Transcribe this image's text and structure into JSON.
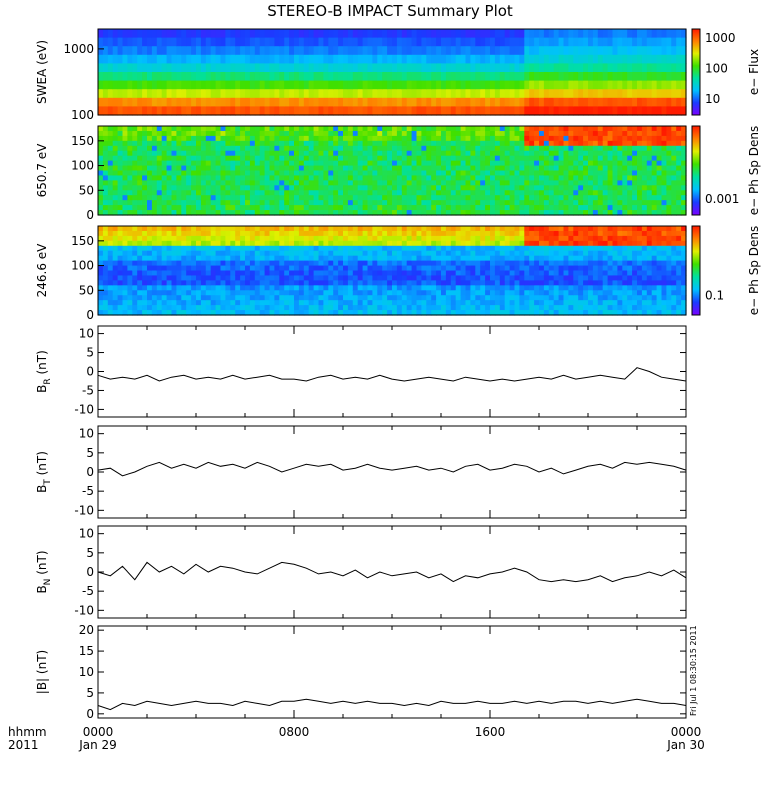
{
  "title": "STEREO-B IMPACT Summary Plot",
  "stamp": "Fri Jul 1 08:30:15 2011",
  "time_axis": {
    "corner_top": "hhmm",
    "corner_bottom": "2011",
    "ticks": [
      {
        "top": "0000",
        "bottom": "Jan 29",
        "hour": 0
      },
      {
        "top": "0800",
        "bottom": "",
        "hour": 8
      },
      {
        "top": "1600",
        "bottom": "",
        "hour": 16
      },
      {
        "top": "0000",
        "bottom": "Jan 30",
        "hour": 24
      }
    ],
    "range_hours": [
      0,
      24
    ]
  },
  "colors": {
    "line": "#000000",
    "axis": "#000000",
    "background": "#ffffff",
    "colormap": [
      "#7a00ff",
      "#1a3cff",
      "#00c0ff",
      "#00e0a0",
      "#40e000",
      "#e0f000",
      "#ff8000",
      "#ff1a00"
    ]
  },
  "chart_data": [
    {
      "type": "heatmap",
      "name": "swea",
      "ylabel": "SWEA (eV)",
      "yscale": "log",
      "ylim": [
        100,
        2000
      ],
      "yticks": [
        "1000",
        "100"
      ],
      "colorbar": {
        "label": "e− Flux",
        "ticks": [
          "1000",
          "100",
          "10"
        ],
        "scale": "log",
        "range": [
          3,
          2000
        ]
      },
      "description_rows": "energy bands from 100 to 2000 eV; flux highest near 100 eV",
      "band_flux": [
        1200,
        700,
        260,
        120,
        60,
        30,
        18,
        12,
        9,
        7
      ],
      "enhanced_interval_hours": [
        17.5,
        24
      ]
    },
    {
      "type": "heatmap",
      "name": "pad-650",
      "ylabel": "650.7 eV",
      "ylim": [
        0,
        180
      ],
      "yticks": [
        "150",
        "100",
        "50",
        "0"
      ],
      "colorbar": {
        "label": "e− Ph Sp Dens",
        "ticks": [
          "0.001"
        ],
        "scale": "log"
      },
      "enhanced_interval_hours": [
        17.5,
        24
      ]
    },
    {
      "type": "heatmap",
      "name": "pad-246",
      "ylabel": "246.6 eV",
      "ylim": [
        0,
        180
      ],
      "yticks": [
        "150",
        "100",
        "50",
        "0"
      ],
      "colorbar": {
        "label": "e− Ph Sp Dens",
        "ticks": [
          "0.1"
        ],
        "scale": "log"
      },
      "enhanced_interval_hours": [
        17.5,
        24
      ]
    },
    {
      "type": "line",
      "name": "br",
      "ylabel_main": "B",
      "ylabel_sub": "R",
      "ylabel_tail": " (nT)",
      "ylim": [
        -12,
        12
      ],
      "yticks": [
        10,
        5,
        0,
        -5,
        -10
      ],
      "x_hours": [
        0,
        0.5,
        1,
        1.5,
        2,
        2.5,
        3,
        3.5,
        4,
        4.5,
        5,
        5.5,
        6,
        6.5,
        7,
        7.5,
        8,
        8.5,
        9,
        9.5,
        10,
        10.5,
        11,
        11.5,
        12,
        12.5,
        13,
        13.5,
        14,
        14.5,
        15,
        15.5,
        16,
        16.5,
        17,
        17.5,
        18,
        18.5,
        19,
        19.5,
        20,
        20.5,
        21,
        21.5,
        22,
        22.5,
        23,
        23.5,
        24
      ],
      "values": [
        -1,
        -2,
        -1.5,
        -2,
        -1,
        -2.5,
        -1.5,
        -1,
        -2,
        -1.5,
        -2,
        -1,
        -2,
        -1.5,
        -1,
        -2,
        -2,
        -2.5,
        -1.5,
        -1,
        -2,
        -1.5,
        -2,
        -1,
        -2,
        -2.5,
        -2,
        -1.5,
        -2,
        -2.5,
        -1.5,
        -2,
        -2.5,
        -2,
        -2.5,
        -2,
        -1.5,
        -2,
        -1,
        -2,
        -1.5,
        -1,
        -1.5,
        -2,
        1,
        0,
        -1.5,
        -2,
        -2.5
      ]
    },
    {
      "type": "line",
      "name": "bt",
      "ylabel_main": "B",
      "ylabel_sub": "T",
      "ylabel_tail": " (nT)",
      "ylim": [
        -12,
        12
      ],
      "yticks": [
        10,
        5,
        0,
        -5,
        -10
      ],
      "x_hours": [
        0,
        0.5,
        1,
        1.5,
        2,
        2.5,
        3,
        3.5,
        4,
        4.5,
        5,
        5.5,
        6,
        6.5,
        7,
        7.5,
        8,
        8.5,
        9,
        9.5,
        10,
        10.5,
        11,
        11.5,
        12,
        12.5,
        13,
        13.5,
        14,
        14.5,
        15,
        15.5,
        16,
        16.5,
        17,
        17.5,
        18,
        18.5,
        19,
        19.5,
        20,
        20.5,
        21,
        21.5,
        22,
        22.5,
        23,
        23.5,
        24
      ],
      "values": [
        0.5,
        1,
        -1,
        0,
        1.5,
        2.5,
        1,
        2,
        1,
        2.5,
        1.5,
        2,
        1,
        2.5,
        1.5,
        0,
        1,
        2,
        1.5,
        2,
        0.5,
        1,
        2,
        1,
        0.5,
        1,
        1.5,
        0.5,
        1,
        0,
        1.5,
        2,
        0.5,
        1,
        2,
        1.5,
        0,
        1,
        -0.5,
        0.5,
        1.5,
        2,
        1,
        2.5,
        2,
        2.5,
        2,
        1.5,
        0.5
      ]
    },
    {
      "type": "line",
      "name": "bn",
      "ylabel_main": "B",
      "ylabel_sub": "N",
      "ylabel_tail": " (nT)",
      "ylim": [
        -12,
        12
      ],
      "yticks": [
        10,
        5,
        0,
        -5,
        -10
      ],
      "x_hours": [
        0,
        0.5,
        1,
        1.5,
        2,
        2.5,
        3,
        3.5,
        4,
        4.5,
        5,
        5.5,
        6,
        6.5,
        7,
        7.5,
        8,
        8.5,
        9,
        9.5,
        10,
        10.5,
        11,
        11.5,
        12,
        12.5,
        13,
        13.5,
        14,
        14.5,
        15,
        15.5,
        16,
        16.5,
        17,
        17.5,
        18,
        18.5,
        19,
        19.5,
        20,
        20.5,
        21,
        21.5,
        22,
        22.5,
        23,
        23.5,
        24
      ],
      "values": [
        0,
        -1,
        1.5,
        -2,
        2.5,
        0,
        1.5,
        -0.5,
        2,
        0,
        1.5,
        1,
        0,
        -0.5,
        1,
        2.5,
        2,
        1,
        -0.5,
        0,
        -1,
        0.5,
        -1.5,
        0,
        -1,
        -0.5,
        0,
        -1.5,
        -0.5,
        -2.5,
        -1,
        -1.5,
        -0.5,
        0,
        1,
        0,
        -2,
        -2.5,
        -2,
        -2.5,
        -2,
        -1,
        -2.5,
        -1.5,
        -1,
        0,
        -1,
        0.5,
        -1.5
      ]
    },
    {
      "type": "line",
      "name": "bmag",
      "ylabel_main": "|B| (nT)",
      "ylim": [
        -1,
        21
      ],
      "yticks": [
        20,
        15,
        10,
        5,
        0
      ],
      "x_hours": [
        0,
        0.5,
        1,
        1.5,
        2,
        2.5,
        3,
        3.5,
        4,
        4.5,
        5,
        5.5,
        6,
        6.5,
        7,
        7.5,
        8,
        8.5,
        9,
        9.5,
        10,
        10.5,
        11,
        11.5,
        12,
        12.5,
        13,
        13.5,
        14,
        14.5,
        15,
        15.5,
        16,
        16.5,
        17,
        17.5,
        18,
        18.5,
        19,
        19.5,
        20,
        20.5,
        21,
        21.5,
        22,
        22.5,
        23,
        23.5,
        24
      ],
      "values": [
        2,
        1,
        2.5,
        2,
        3,
        2.5,
        2,
        2.5,
        3,
        2.5,
        2.5,
        2,
        3,
        2.5,
        2,
        3,
        3,
        3.5,
        3,
        2.5,
        3,
        2.5,
        3,
        2.5,
        2.5,
        2,
        2.5,
        2,
        3,
        2.5,
        2.5,
        3,
        2.5,
        2.5,
        3,
        2.5,
        3,
        2.5,
        3,
        3,
        2.5,
        3,
        2.5,
        3,
        3.5,
        3,
        2.5,
        2.5,
        2
      ]
    }
  ]
}
